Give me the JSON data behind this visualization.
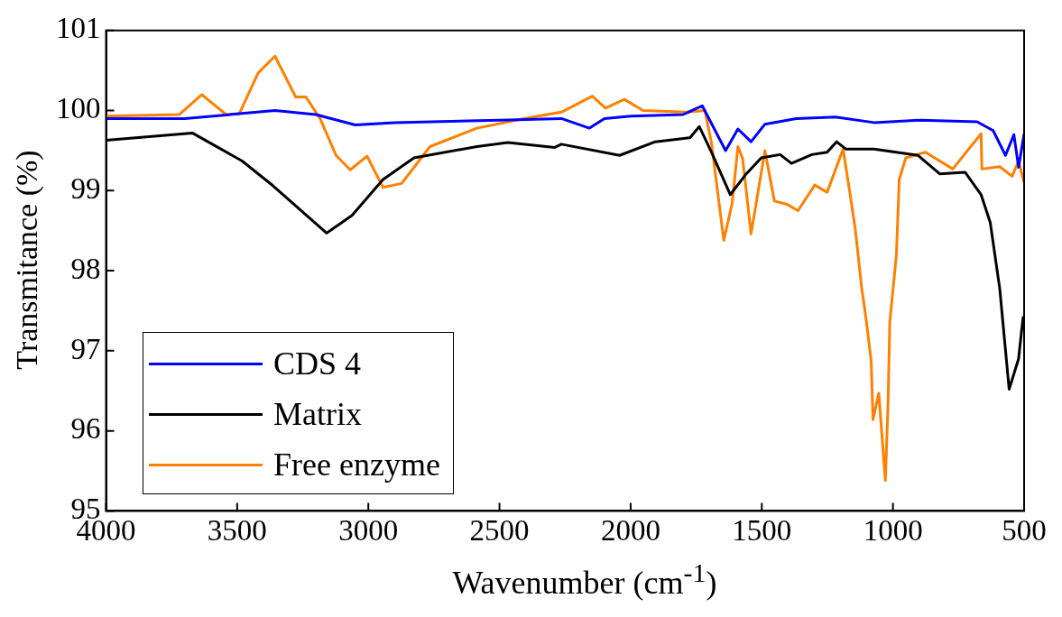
{
  "chart_data": {
    "type": "line",
    "xlabel": "Wavenumber (cm$^{-1}$)",
    "ylabel": "Transmitance (%)",
    "xlim": [
      4000,
      500
    ],
    "xticks": [
      4000,
      3500,
      3000,
      2500,
      2000,
      1500,
      1000,
      500
    ],
    "ylim": [
      95,
      101
    ],
    "yticks": [
      95,
      96,
      97,
      98,
      99,
      100,
      101
    ],
    "grid": false,
    "legend": "bottom left",
    "marker": "none",
    "line_style": "solid",
    "series": [
      {
        "name": "CDS 4",
        "color": "#0000ff",
        "x": [
          4000,
          3700,
          3356,
          3200,
          3050,
          2900,
          2500,
          2264,
          2157,
          2100,
          2000,
          1800,
          1727,
          1638,
          1591,
          1541,
          1488,
          1369,
          1219,
          1072,
          893,
          679,
          618,
          571,
          539,
          521,
          500
        ],
        "values": [
          99.9,
          99.9,
          100.0,
          99.95,
          99.82,
          99.85,
          99.88,
          99.9,
          99.78,
          99.9,
          99.93,
          99.95,
          100.06,
          99.5,
          99.77,
          99.61,
          99.83,
          99.9,
          99.92,
          99.85,
          99.88,
          99.86,
          99.75,
          99.44,
          99.7,
          99.29,
          99.71
        ]
      },
      {
        "name": "Matrix",
        "color": "#000000",
        "x": [
          4000,
          3671,
          3481,
          3363,
          3159,
          3062,
          2944,
          2826,
          2586,
          2468,
          2289,
          2264,
          2042,
          1906,
          1774,
          1738,
          1692,
          1620,
          1559,
          1502,
          1430,
          1387,
          1309,
          1251,
          1215,
          1180,
          1072,
          904,
          822,
          725,
          664,
          629,
          593,
          557,
          521,
          510,
          503
        ],
        "values": [
          99.63,
          99.72,
          99.37,
          99.06,
          98.47,
          98.69,
          99.14,
          99.41,
          99.55,
          99.6,
          99.54,
          99.58,
          99.44,
          99.61,
          99.66,
          99.8,
          99.48,
          98.95,
          99.21,
          99.41,
          99.45,
          99.34,
          99.45,
          99.48,
          99.61,
          99.52,
          99.52,
          99.44,
          99.21,
          99.23,
          98.95,
          98.6,
          97.78,
          96.52,
          96.9,
          97.24,
          97.43
        ]
      },
      {
        "name": "Free enzyme",
        "color": "#ff8000",
        "x": [
          4000,
          3721,
          3635,
          3542,
          3492,
          3420,
          3356,
          3277,
          3238,
          3184,
          3123,
          3069,
          3005,
          2944,
          2873,
          2765,
          2586,
          2407,
          2264,
          2146,
          2096,
          2024,
          1953,
          1788,
          1717,
          1692,
          1645,
          1613,
          1591,
          1573,
          1541,
          1512,
          1488,
          1452,
          1405,
          1362,
          1298,
          1251,
          1190,
          1165,
          1144,
          1119,
          1112,
          1101,
          1083,
          1076,
          1054,
          1029,
          1019,
          1012,
          987,
          976,
          951,
          876,
          772,
          664,
          661,
          593,
          546,
          521,
          500
        ],
        "values": [
          99.93,
          99.95,
          100.2,
          99.95,
          99.96,
          100.47,
          100.68,
          100.17,
          100.17,
          99.9,
          99.44,
          99.26,
          99.43,
          99.04,
          99.09,
          99.55,
          99.78,
          99.9,
          99.98,
          100.18,
          100.03,
          100.14,
          100.0,
          99.98,
          100.0,
          99.6,
          98.38,
          98.84,
          99.55,
          99.4,
          98.46,
          99.03,
          99.5,
          98.87,
          98.83,
          98.75,
          99.07,
          98.98,
          99.52,
          98.99,
          98.53,
          97.78,
          97.62,
          97.36,
          96.87,
          96.14,
          96.47,
          95.38,
          96.3,
          97.36,
          98.19,
          99.14,
          99.41,
          99.48,
          99.27,
          99.71,
          99.27,
          99.3,
          99.18,
          99.37,
          99.1
        ]
      }
    ]
  }
}
